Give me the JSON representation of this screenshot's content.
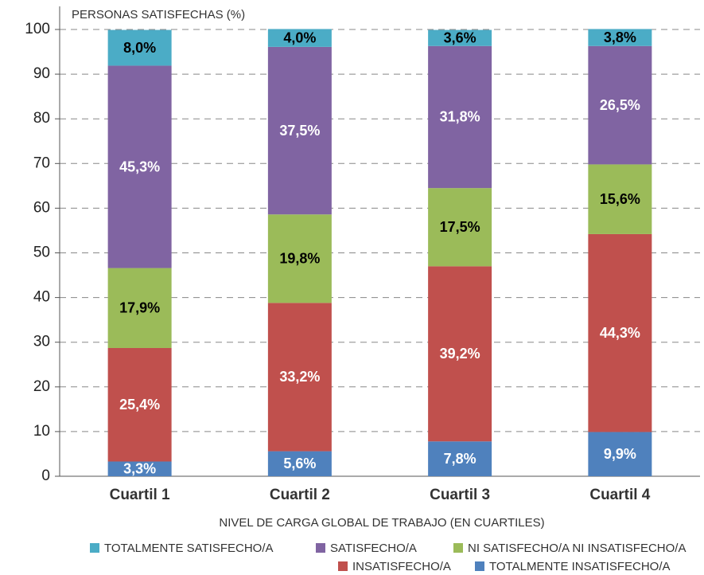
{
  "chart_data": {
    "type": "stacked_bar",
    "ylabel": "PERSONAS SATISFECHAS (%)",
    "xlabel": "NIVEL DE CARGA GLOBAL DE TRABAJO (EN CUARTILES)",
    "categories": [
      "Cuartil 1",
      "Cuartil 2",
      "Cuartil 3",
      "Cuartil 4"
    ],
    "ylim": [
      0,
      100
    ],
    "yticks": [
      0,
      10,
      20,
      30,
      40,
      50,
      60,
      70,
      80,
      90,
      100
    ],
    "grid": true,
    "series": [
      {
        "name": "TOTALMENTE SATISFECHO/A",
        "color": "#4bacc6",
        "label_color": "#000000",
        "values": [
          8.0,
          4.0,
          3.6,
          3.8
        ],
        "value_labels": [
          "8,0%",
          "4,0%",
          "3,6%",
          "3,8%"
        ]
      },
      {
        "name": "SATISFECHO/A",
        "color": "#8064a2",
        "label_color": "#ffffff",
        "values": [
          45.3,
          37.5,
          31.8,
          26.5
        ],
        "value_labels": [
          "45,3%",
          "37,5%",
          "31,8%",
          "26,5%"
        ]
      },
      {
        "name": "NI SATISFECHO/A NI INSATISFECHO/A",
        "color": "#9bbb59",
        "label_color": "#000000",
        "values": [
          17.9,
          19.8,
          17.5,
          15.6
        ],
        "value_labels": [
          "17,9%",
          "19,8%",
          "17,5%",
          "15,6%"
        ]
      },
      {
        "name": "INSATISFECHO/A",
        "color": "#c0504d",
        "label_color": "#ffffff",
        "values": [
          25.4,
          33.2,
          39.2,
          44.3
        ],
        "value_labels": [
          "25,4%",
          "33,2%",
          "39,2%",
          "44,3%"
        ]
      },
      {
        "name": "TOTALMENTE INSATISFECHO/A",
        "color": "#4f81bd",
        "label_color": "#ffffff",
        "values": [
          3.3,
          5.6,
          7.8,
          9.9
        ],
        "value_labels": [
          "3,3%",
          "5,6%",
          "7,8%",
          "9,9%"
        ]
      }
    ]
  }
}
